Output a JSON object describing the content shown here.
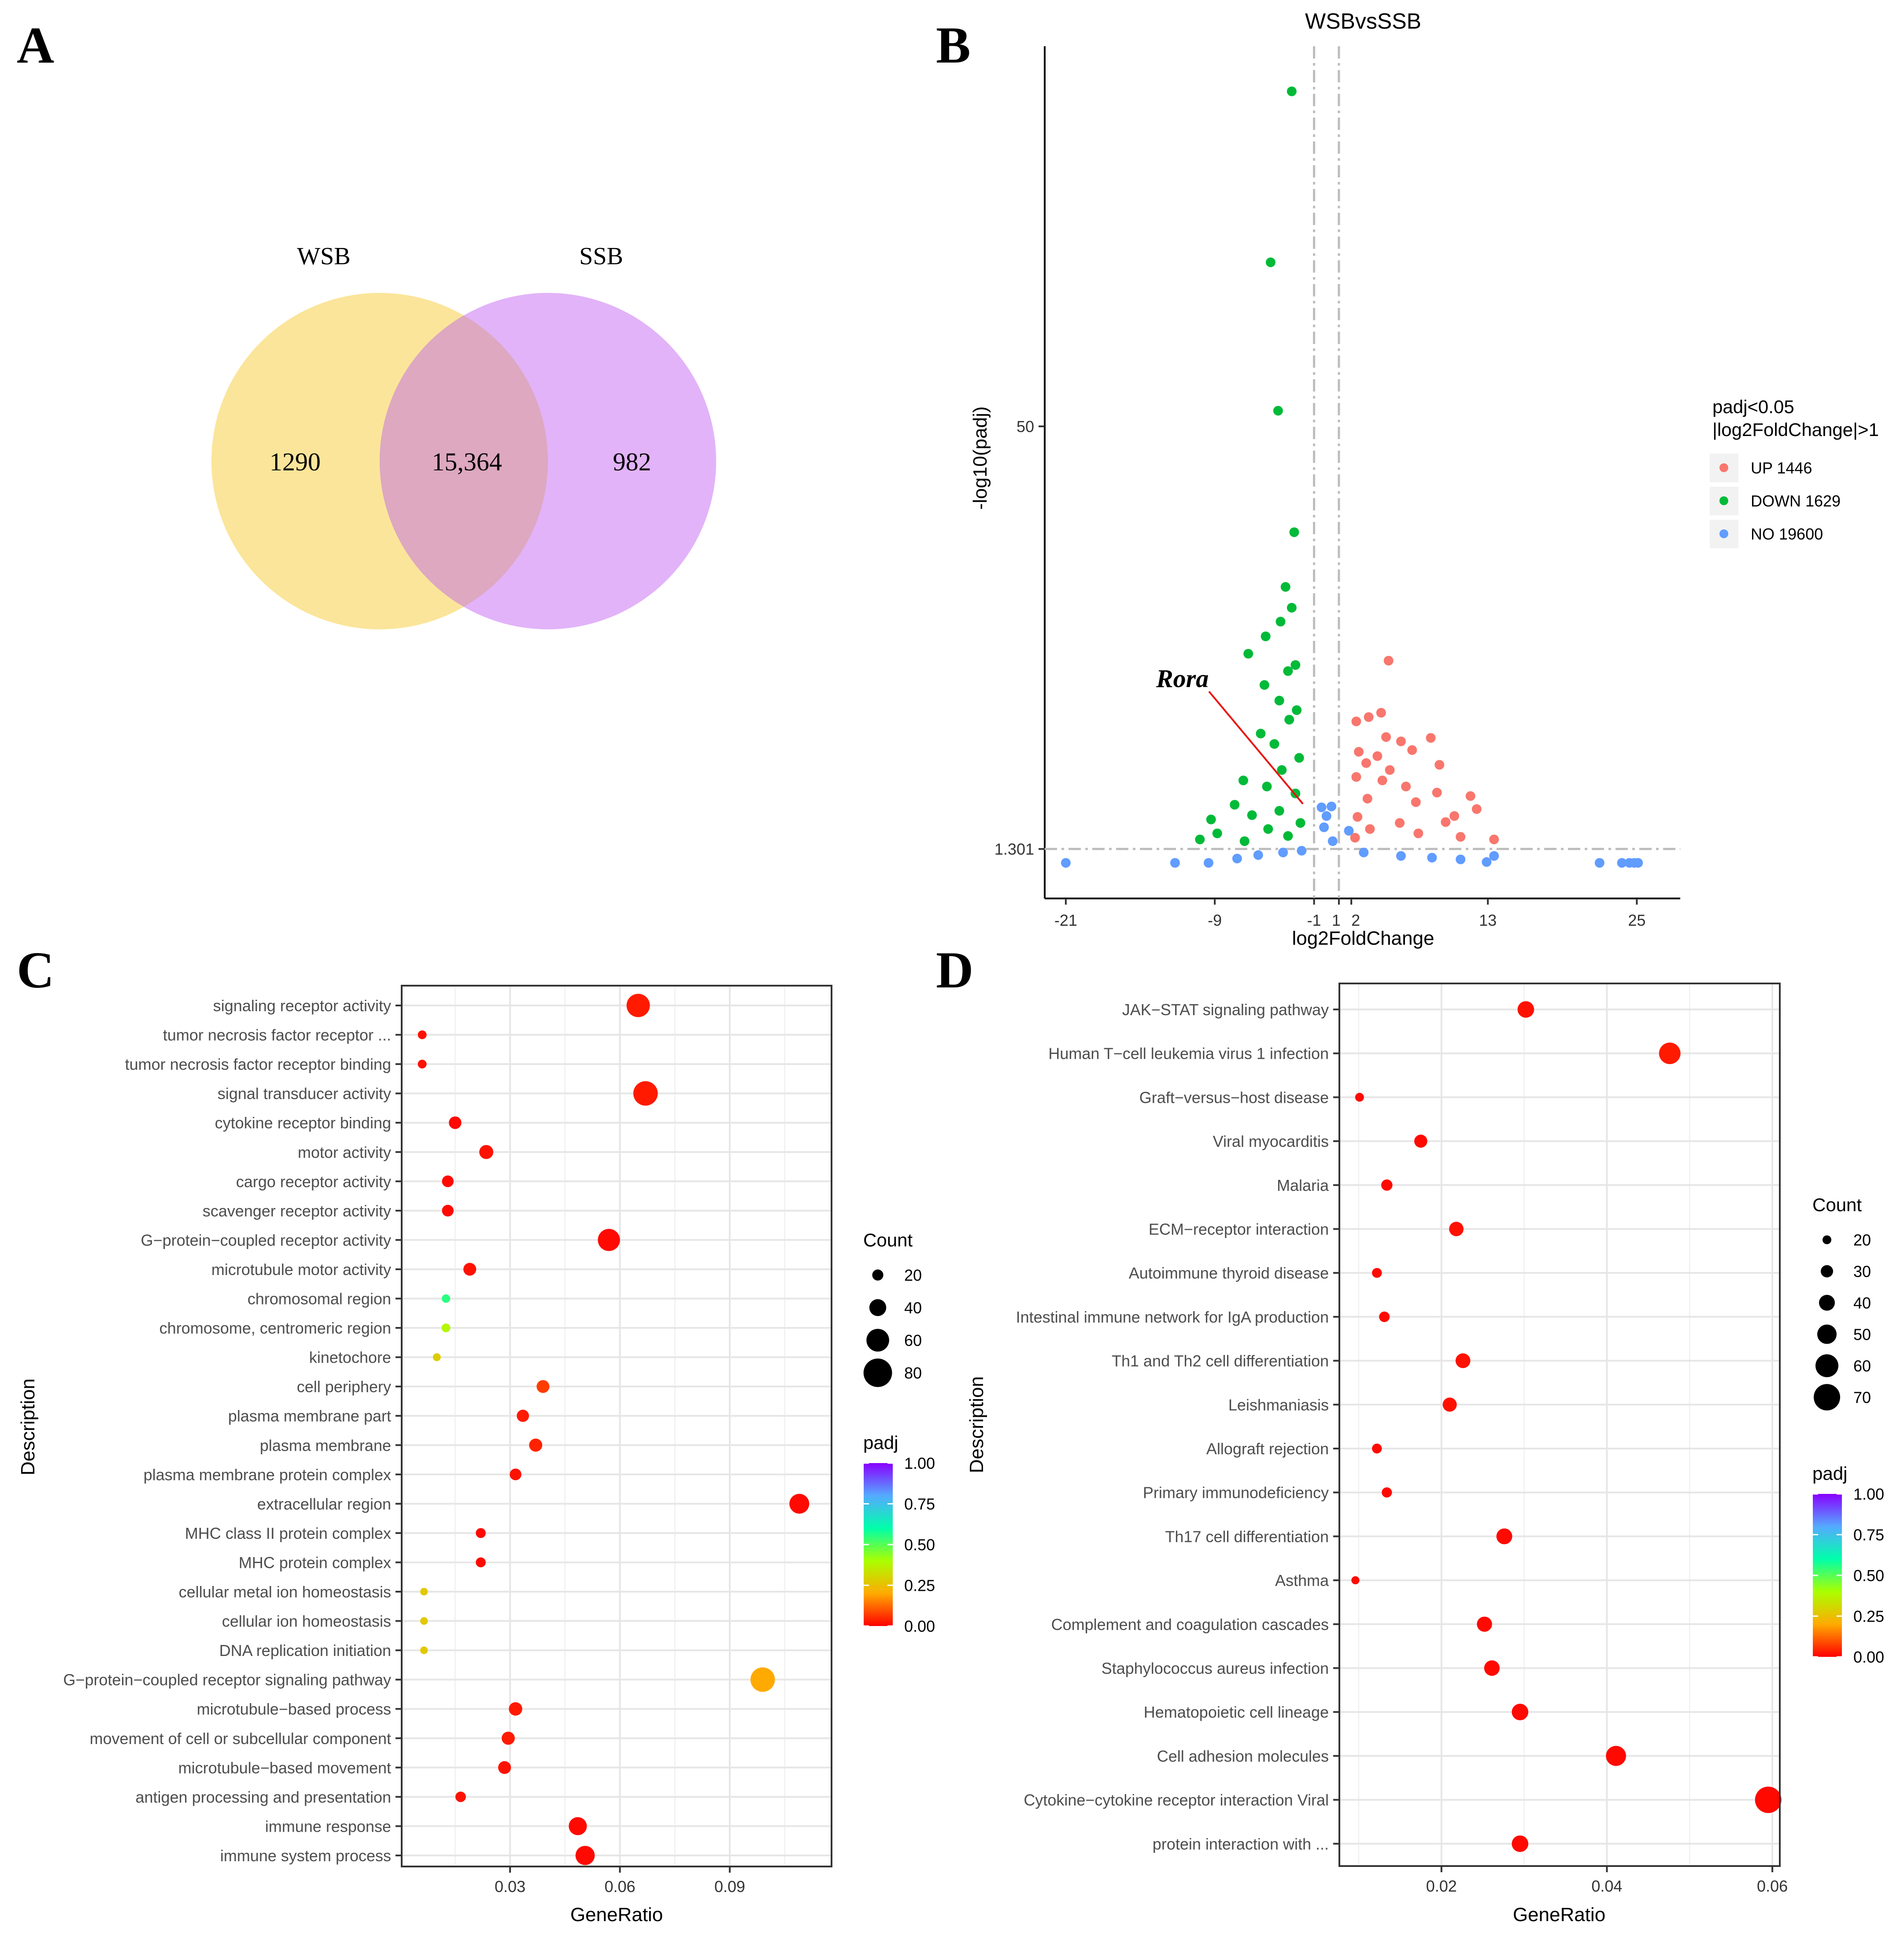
{
  "panels": {
    "a": "A",
    "b": "B",
    "c": "C",
    "d": "D"
  },
  "venn": {
    "left_label": "WSB",
    "right_label": "SSB",
    "left_only": "1290",
    "both": "15,364",
    "right_only": "982",
    "colors": {
      "left": "#fbe59a",
      "right": "#e2b3f8",
      "overlap": "#dda8c0"
    }
  },
  "volcano": {
    "title": "WSBvsSSB",
    "xlabel": "log2FoldChange",
    "ylabel": "-log10(padj)",
    "x_ticks": [
      "-21",
      "-9",
      "-1",
      "1",
      "2",
      "13",
      "25"
    ],
    "x_tick_values": [
      -21,
      -9,
      -1,
      1,
      2,
      13,
      25
    ],
    "y_ticks": [
      "1.301",
      "50"
    ],
    "y_tick_values": [
      1.301,
      50
    ],
    "legend_title_line1": "padj<0.05",
    "legend_title_line2": "|log2FoldChange|>1",
    "legend": [
      {
        "label": "UP 1446",
        "color": "#f8766d"
      },
      {
        "label": "DOWN 1629",
        "color": "#00ba38"
      },
      {
        "label": "NO 19600",
        "color": "#619cff"
      }
    ],
    "annotation": "Rora"
  },
  "chart_data": [
    {
      "type": "scatter",
      "title": "WSBvsSSB",
      "xlabel": "log2FoldChange",
      "ylabel": "-log10(padj)",
      "xlim": [
        -22.7,
        28.5
      ],
      "ylim": [
        -4.4,
        93.8
      ],
      "threshold_lines": {
        "x": [
          -1,
          1
        ],
        "y": 1.301
      },
      "series": [
        {
          "name": "UP 1446",
          "color": "#f8766d",
          "points": [
            [
              5,
              23
            ],
            [
              4.4,
              17
            ],
            [
              3.4,
              16.5
            ],
            [
              2.4,
              16
            ],
            [
              4.8,
              14.2
            ],
            [
              6,
              13.7
            ],
            [
              8.4,
              14.1
            ],
            [
              2.6,
              12.5
            ],
            [
              4.1,
              12
            ],
            [
              6.9,
              12.7
            ],
            [
              3.2,
              11.2
            ],
            [
              5.1,
              10.4
            ],
            [
              9.1,
              11
            ],
            [
              2.4,
              9.6
            ],
            [
              4.5,
              9.2
            ],
            [
              6.4,
              8.5
            ],
            [
              8.9,
              7.8
            ],
            [
              3.3,
              7.1
            ],
            [
              7.2,
              6.7
            ],
            [
              11.6,
              7.4
            ],
            [
              12.1,
              5.9
            ],
            [
              10.3,
              5.1
            ],
            [
              2.5,
              5
            ],
            [
              5.9,
              4.3
            ],
            [
              9.6,
              4.4
            ],
            [
              3.5,
              3.6
            ],
            [
              7.4,
              3.1
            ],
            [
              10.8,
              2.7
            ],
            [
              2.3,
              2.6
            ],
            [
              13.5,
              2.4
            ]
          ]
        },
        {
          "name": "DOWN 1629",
          "color": "#00ba38",
          "points": [
            [
              -2.8,
              88.6
            ],
            [
              -4.5,
              68.9
            ],
            [
              -3.9,
              51.8
            ],
            [
              -2.6,
              37.8
            ],
            [
              -3.3,
              31.5
            ],
            [
              -2.8,
              29.1
            ],
            [
              -3.7,
              27.5
            ],
            [
              -4.9,
              25.8
            ],
            [
              -6.3,
              23.8
            ],
            [
              -2.5,
              22.5
            ],
            [
              -3.1,
              21.8
            ],
            [
              -5,
              20.2
            ],
            [
              -3.8,
              18.4
            ],
            [
              -2.4,
              17.3
            ],
            [
              -3,
              16.2
            ],
            [
              -5.3,
              14.6
            ],
            [
              -4.2,
              13.4
            ],
            [
              -2.2,
              11.8
            ],
            [
              -3.6,
              10.4
            ],
            [
              -6.7,
              9.2
            ],
            [
              -4.8,
              8.5
            ],
            [
              -2.5,
              7.7
            ],
            [
              -7.4,
              6.4
            ],
            [
              -3.8,
              5.7
            ],
            [
              -6,
              5.2
            ],
            [
              -9.3,
              4.7
            ],
            [
              -2.1,
              4.3
            ],
            [
              -4.7,
              3.6
            ],
            [
              -8.8,
              3.1
            ],
            [
              -3.1,
              2.8
            ],
            [
              -10.2,
              2.4
            ],
            [
              -6.6,
              2.2
            ]
          ]
        },
        {
          "name": "NO 19600",
          "color": "#619cff",
          "points": [
            [
              -21,
              -0.3
            ],
            [
              -12.2,
              -0.3
            ],
            [
              -9.5,
              -0.3
            ],
            [
              -7.2,
              0.2
            ],
            [
              -5.5,
              0.6
            ],
            [
              -3.5,
              0.9
            ],
            [
              -2,
              1.1
            ],
            [
              0.5,
              2.2
            ],
            [
              0,
              5.1
            ],
            [
              -0.4,
              6.1
            ],
            [
              0.4,
              6.2
            ],
            [
              -0.2,
              3.8
            ],
            [
              1.8,
              3.4
            ],
            [
              3,
              0.9
            ],
            [
              6,
              0.5
            ],
            [
              8.5,
              0.3
            ],
            [
              10.8,
              0.1
            ],
            [
              12.9,
              -0.2
            ],
            [
              13.5,
              0.5
            ],
            [
              22,
              -0.3
            ],
            [
              23.8,
              -0.3
            ],
            [
              24.8,
              -0.3
            ],
            [
              25.1,
              -0.3
            ],
            [
              24.4,
              -0.3
            ]
          ]
        }
      ],
      "annotation": {
        "label": "Rora",
        "point": [
          -1.9,
          6.5
        ]
      }
    },
    {
      "type": "scatter",
      "title": "",
      "xlabel": "GeneRatio",
      "ylabel": "Description",
      "x_ticks": [
        "0.03",
        "0.06",
        "0.09"
      ],
      "x_tick_values": [
        0.03,
        0.06,
        0.09
      ],
      "xlim": [
        0.0004,
        0.1178
      ],
      "size_legend_title": "Count",
      "size_legend": [
        "20",
        "40",
        "60",
        "80"
      ],
      "size_legend_values": [
        20,
        40,
        60,
        80
      ],
      "color_legend_title": "padj",
      "color_legend": [
        "1.00",
        "0.75",
        "0.50",
        "0.25",
        "0.00"
      ],
      "categories": [
        "signaling receptor activity",
        "tumor necrosis factor receptor ...",
        "tumor necrosis factor receptor binding",
        "signal transducer activity",
        "cytokine receptor binding",
        "motor activity",
        "cargo receptor activity",
        "scavenger receptor activity",
        "G−protein−coupled receptor activity",
        "microtubule motor activity",
        "chromosomal region",
        "chromosome, centromeric region",
        "kinetochore",
        "cell periphery",
        "plasma membrane part",
        "plasma membrane",
        "plasma membrane protein complex",
        "extracellular region",
        "MHC class II protein complex",
        "MHC protein complex",
        "cellular metal ion homeostasis",
        "cellular ion homeostasis",
        "DNA replication initiation",
        "G−protein−coupled receptor signaling pathway",
        "microtubule−based process",
        "movement of cell or subcellular component",
        "microtubule−based movement",
        "antigen processing and presentation",
        "immune response",
        "immune system process"
      ],
      "gene_ratio": [
        0.065,
        0.006,
        0.006,
        0.067,
        0.015,
        0.0235,
        0.013,
        0.013,
        0.057,
        0.019,
        0.0125,
        0.0125,
        0.01,
        0.039,
        0.0335,
        0.037,
        0.0315,
        0.109,
        0.022,
        0.022,
        0.0065,
        0.0065,
        0.0065,
        0.099,
        0.0315,
        0.0295,
        0.0285,
        0.0165,
        0.0485,
        0.0505
      ],
      "count": [
        62,
        12,
        12,
        66,
        25,
        30,
        22,
        22,
        58,
        26,
        11,
        12,
        9,
        26,
        24,
        27,
        22,
        50,
        16,
        16,
        8,
        8,
        8,
        66,
        28,
        27,
        26,
        18,
        44,
        48
      ],
      "padj": [
        0.03,
        0.02,
        0.02,
        0.03,
        0.01,
        0.02,
        0.01,
        0.01,
        0.01,
        0.02,
        0.55,
        0.38,
        0.28,
        0.07,
        0.03,
        0.04,
        0.02,
        0.01,
        0.01,
        0.01,
        0.27,
        0.27,
        0.27,
        0.2,
        0.03,
        0.03,
        0.02,
        0.02,
        0.01,
        0.01
      ]
    },
    {
      "type": "scatter",
      "title": "",
      "xlabel": "GeneRatio",
      "ylabel": "Description",
      "x_ticks": [
        "0.02",
        "0.04",
        "0.06"
      ],
      "x_tick_values": [
        0.02,
        0.04,
        0.06
      ],
      "xlim": [
        0.00766,
        0.0609
      ],
      "size_legend_title": "Count",
      "size_legend": [
        "20",
        "30",
        "40",
        "50",
        "60",
        "70"
      ],
      "size_legend_values": [
        20,
        30,
        40,
        50,
        60,
        70
      ],
      "color_legend_title": "padj",
      "color_legend": [
        "1.00",
        "0.75",
        "0.50",
        "0.25",
        "0.00"
      ],
      "categories": [
        "JAK−STAT signaling pathway",
        "Human T−cell leukemia virus 1 infection",
        "Graft−versus−host disease",
        "Viral myocarditis",
        "Malaria",
        "ECM−receptor interaction",
        "Autoimmune thyroid disease",
        "Intestinal immune network for IgA production",
        "Th1 and Th2 cell differentiation",
        "Leishmaniasis",
        "Allograft rejection",
        "Primary immunodeficiency",
        "Th17 cell differentiation",
        "Asthma",
        "Complement and coagulation cascades",
        "Staphylococcus aureus infection",
        "Hematopoietic cell lineage",
        "Cell adhesion molecules",
        "Cytokine−cytokine receptor interaction Viral",
        "protein interaction with ..."
      ],
      "gene_ratio": [
        0.0302,
        0.0476,
        0.0101,
        0.0175,
        0.0134,
        0.0218,
        0.0122,
        0.0131,
        0.0226,
        0.021,
        0.0122,
        0.0134,
        0.0276,
        0.0096,
        0.0252,
        0.0261,
        0.0295,
        0.0411,
        0.0595,
        0.0295
      ],
      "count": [
        42,
        56,
        20,
        32,
        27,
        36,
        23,
        25,
        37,
        35,
        23,
        24,
        40,
        18,
        38,
        39,
        42,
        52,
        70,
        42
      ],
      "padj": [
        0.02,
        0.03,
        0.01,
        0.01,
        0.01,
        0.02,
        0.01,
        0.01,
        0.02,
        0.02,
        0.01,
        0.01,
        0.01,
        0.01,
        0.01,
        0.01,
        0.01,
        0.01,
        0.01,
        0.01
      ]
    }
  ]
}
